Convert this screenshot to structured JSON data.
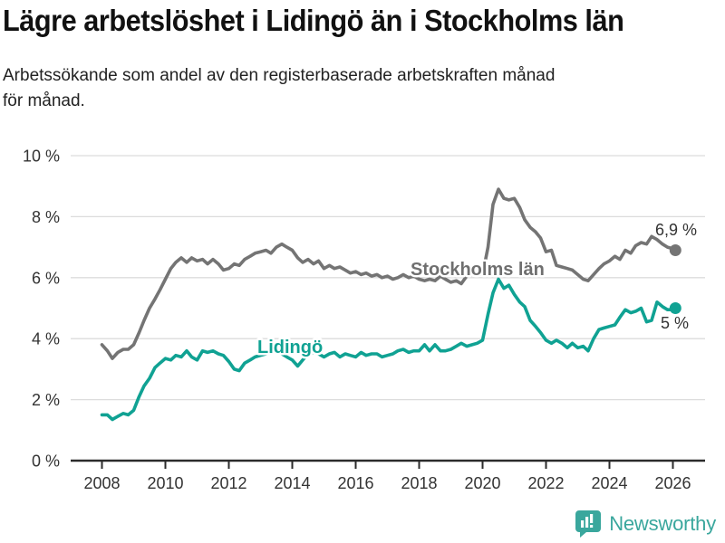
{
  "header": {
    "title": "Lägre arbetslöshet i Lidingö än i Stockholms län",
    "subtitle": "Arbetssökande som andel av den registerbaserade arbetskraften månad för månad.",
    "subtitle_line1": "Arbetssökande som andel av den registerbaserade arbetskraften månad",
    "subtitle_line2": "för månad."
  },
  "footer": {
    "brand": "Newsworthy",
    "brand_color": "#3aa79d",
    "logo_icon": "bar-chart-speech-bubble-icon"
  },
  "colors": {
    "lidingo": "#10a293",
    "stockholm": "#747474",
    "stockholm_label": "#6f6f6f",
    "grid": "#dcdcdc",
    "axis": "#2b2b2b",
    "tick_text": "#333333",
    "value_text": "#333333"
  },
  "chart_data": {
    "type": "line",
    "title": "Lägre arbetslöshet i Lidingö än i Stockholms län",
    "xlabel": "",
    "ylabel": "",
    "ylim": [
      0,
      10
    ],
    "xlim": [
      2007.8,
      2027
    ],
    "grid": "horizontal",
    "legend_position": "inline-labels",
    "y_ticks": [
      {
        "value": 0,
        "label": "0 %"
      },
      {
        "value": 2,
        "label": "2 %"
      },
      {
        "value": 4,
        "label": "4 %"
      },
      {
        "value": 6,
        "label": "6 %"
      },
      {
        "value": 8,
        "label": "8 %"
      },
      {
        "value": 10,
        "label": "10 %"
      }
    ],
    "x_ticks": [
      2008,
      2010,
      2012,
      2014,
      2016,
      2018,
      2020,
      2022,
      2024,
      2026
    ],
    "x": [
      2008,
      2008.17,
      2008.33,
      2008.5,
      2008.67,
      2008.83,
      2009,
      2009.17,
      2009.33,
      2009.5,
      2009.67,
      2009.83,
      2010,
      2010.17,
      2010.33,
      2010.5,
      2010.67,
      2010.83,
      2011,
      2011.17,
      2011.33,
      2011.5,
      2011.67,
      2011.83,
      2012,
      2012.17,
      2012.33,
      2012.5,
      2012.67,
      2012.83,
      2013,
      2013.17,
      2013.33,
      2013.5,
      2013.67,
      2013.83,
      2014,
      2014.17,
      2014.33,
      2014.5,
      2014.67,
      2014.83,
      2015,
      2015.17,
      2015.33,
      2015.5,
      2015.67,
      2015.83,
      2016,
      2016.17,
      2016.33,
      2016.5,
      2016.67,
      2016.83,
      2017,
      2017.17,
      2017.33,
      2017.5,
      2017.67,
      2017.83,
      2018,
      2018.17,
      2018.33,
      2018.5,
      2018.67,
      2018.83,
      2019,
      2019.17,
      2019.33,
      2019.5,
      2019.67,
      2019.83,
      2020,
      2020.17,
      2020.33,
      2020.5,
      2020.67,
      2020.83,
      2021,
      2021.17,
      2021.33,
      2021.5,
      2021.67,
      2021.83,
      2022,
      2022.17,
      2022.33,
      2022.5,
      2022.67,
      2022.83,
      2023,
      2023.17,
      2023.33,
      2023.5,
      2023.67,
      2023.83,
      2024,
      2024.17,
      2024.33,
      2024.5,
      2024.67,
      2024.83,
      2025,
      2025.17,
      2025.33,
      2025.5,
      2025.67,
      2025.83,
      2026,
      2026.08
    ],
    "series": [
      {
        "name": "Stockholms län",
        "color": "#747474",
        "end_value_label": "6,9 %",
        "end_value": 6.9,
        "values": [
          3.8,
          3.6,
          3.35,
          3.55,
          3.65,
          3.65,
          3.8,
          4.2,
          4.6,
          5.0,
          5.3,
          5.6,
          5.95,
          6.3,
          6.5,
          6.65,
          6.5,
          6.65,
          6.55,
          6.6,
          6.45,
          6.6,
          6.45,
          6.25,
          6.3,
          6.45,
          6.4,
          6.6,
          6.7,
          6.8,
          6.85,
          6.9,
          6.8,
          7.0,
          7.1,
          7.0,
          6.9,
          6.65,
          6.5,
          6.6,
          6.45,
          6.55,
          6.3,
          6.4,
          6.3,
          6.35,
          6.25,
          6.15,
          6.2,
          6.1,
          6.15,
          6.05,
          6.1,
          6.0,
          6.05,
          5.95,
          6.0,
          6.1,
          6.0,
          6.05,
          5.95,
          5.9,
          5.95,
          5.9,
          6.05,
          5.95,
          5.85,
          5.9,
          5.8,
          6.05,
          6.1,
          6.15,
          6.1,
          7.0,
          8.4,
          8.9,
          8.6,
          8.55,
          8.6,
          8.3,
          7.9,
          7.65,
          7.5,
          7.3,
          6.85,
          6.9,
          6.4,
          6.35,
          6.3,
          6.25,
          6.1,
          5.95,
          5.9,
          6.1,
          6.3,
          6.45,
          6.55,
          6.7,
          6.6,
          6.9,
          6.8,
          7.05,
          7.15,
          7.1,
          7.35,
          7.25,
          7.1,
          7.0,
          6.95,
          6.9
        ]
      },
      {
        "name": "Lidingö",
        "color": "#10a293",
        "end_value_label": "5 %",
        "end_value": 5.0,
        "values": [
          1.5,
          1.5,
          1.35,
          1.45,
          1.55,
          1.5,
          1.65,
          2.1,
          2.45,
          2.7,
          3.05,
          3.2,
          3.35,
          3.3,
          3.45,
          3.4,
          3.6,
          3.4,
          3.3,
          3.6,
          3.55,
          3.6,
          3.5,
          3.45,
          3.25,
          3.0,
          2.95,
          3.2,
          3.3,
          3.4,
          3.45,
          3.5,
          3.55,
          3.6,
          3.5,
          3.4,
          3.3,
          3.1,
          3.3,
          3.5,
          3.55,
          3.5,
          3.4,
          3.5,
          3.55,
          3.4,
          3.5,
          3.45,
          3.4,
          3.55,
          3.45,
          3.5,
          3.5,
          3.4,
          3.45,
          3.5,
          3.6,
          3.65,
          3.55,
          3.6,
          3.6,
          3.8,
          3.6,
          3.8,
          3.6,
          3.6,
          3.65,
          3.75,
          3.85,
          3.75,
          3.8,
          3.85,
          3.95,
          4.8,
          5.5,
          5.95,
          5.65,
          5.75,
          5.45,
          5.2,
          5.05,
          4.6,
          4.4,
          4.2,
          3.95,
          3.85,
          3.95,
          3.85,
          3.7,
          3.85,
          3.7,
          3.75,
          3.6,
          4.0,
          4.3,
          4.35,
          4.4,
          4.45,
          4.7,
          4.95,
          4.85,
          4.9,
          5.0,
          4.55,
          4.6,
          5.2,
          5.05,
          4.95,
          4.95,
          5.0
        ]
      }
    ]
  }
}
